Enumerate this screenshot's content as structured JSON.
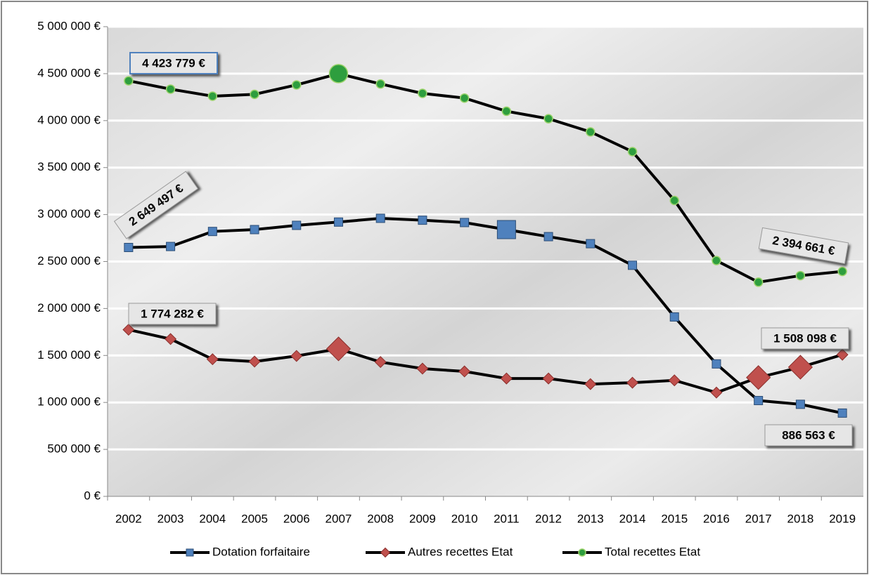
{
  "chart_data": {
    "type": "line",
    "categories": [
      "2002",
      "2003",
      "2004",
      "2005",
      "2006",
      "2007",
      "2008",
      "2009",
      "2010",
      "2011",
      "2012",
      "2013",
      "2014",
      "2015",
      "2016",
      "2017",
      "2018",
      "2019"
    ],
    "series": [
      {
        "name": "Dotation forfaitaire",
        "color": "#4f81bd",
        "marker": "square",
        "values": [
          2649497,
          2660000,
          2820000,
          2840000,
          2885000,
          2920000,
          2960000,
          2940000,
          2915000,
          2840000,
          2765000,
          2690000,
          2460000,
          1910000,
          1410000,
          1020000,
          980000,
          886563
        ],
        "value_labels": [
          "2 649 497 €",
          null,
          null,
          null,
          null,
          null,
          null,
          null,
          null,
          null,
          null,
          null,
          null,
          null,
          null,
          null,
          null,
          "886 563 €"
        ]
      },
      {
        "name": "Autres recettes Etat",
        "color": "#c0504d",
        "marker": "diamond",
        "values": [
          1774282,
          1675000,
          1460000,
          1435000,
          1495000,
          1570000,
          1430000,
          1360000,
          1330000,
          1255000,
          1255000,
          1195000,
          1210000,
          1235000,
          1105000,
          1265000,
          1375000,
          1508098
        ],
        "value_labels": [
          "1 774 282 €",
          null,
          null,
          null,
          null,
          null,
          null,
          null,
          null,
          null,
          null,
          null,
          null,
          null,
          null,
          null,
          null,
          "1 508 098 €"
        ]
      },
      {
        "name": "Total recettes Etat",
        "color": "#2e9e3e",
        "marker": "circle",
        "values": [
          4423779,
          4335000,
          4260000,
          4280000,
          4380000,
          4500000,
          4390000,
          4290000,
          4240000,
          4100000,
          4020000,
          3880000,
          3670000,
          3150000,
          2510000,
          2280000,
          2350000,
          2394661
        ],
        "value_labels": [
          "4 423 779 €",
          null,
          null,
          null,
          null,
          null,
          null,
          null,
          null,
          null,
          null,
          null,
          null,
          null,
          null,
          null,
          null,
          "2 394 661 €"
        ]
      }
    ],
    "ylim": [
      0,
      5000000
    ],
    "yticks": [
      {
        "value": 0,
        "label": "0 €"
      },
      {
        "value": 500000,
        "label": "500 000 €"
      },
      {
        "value": 1000000,
        "label": "1 000 000 €"
      },
      {
        "value": 1500000,
        "label": "1 500 000 €"
      },
      {
        "value": 2000000,
        "label": "2 000 000 €"
      },
      {
        "value": 2500000,
        "label": "2 500 000 €"
      },
      {
        "value": 3000000,
        "label": "3 000 000 €"
      },
      {
        "value": 3500000,
        "label": "3 500 000 €"
      },
      {
        "value": 4000000,
        "label": "4 000 000 €"
      },
      {
        "value": 4500000,
        "label": "4 500 000 €"
      },
      {
        "value": 5000000,
        "label": "5 000 000 €"
      }
    ],
    "grid": true,
    "legend": "bottom"
  }
}
